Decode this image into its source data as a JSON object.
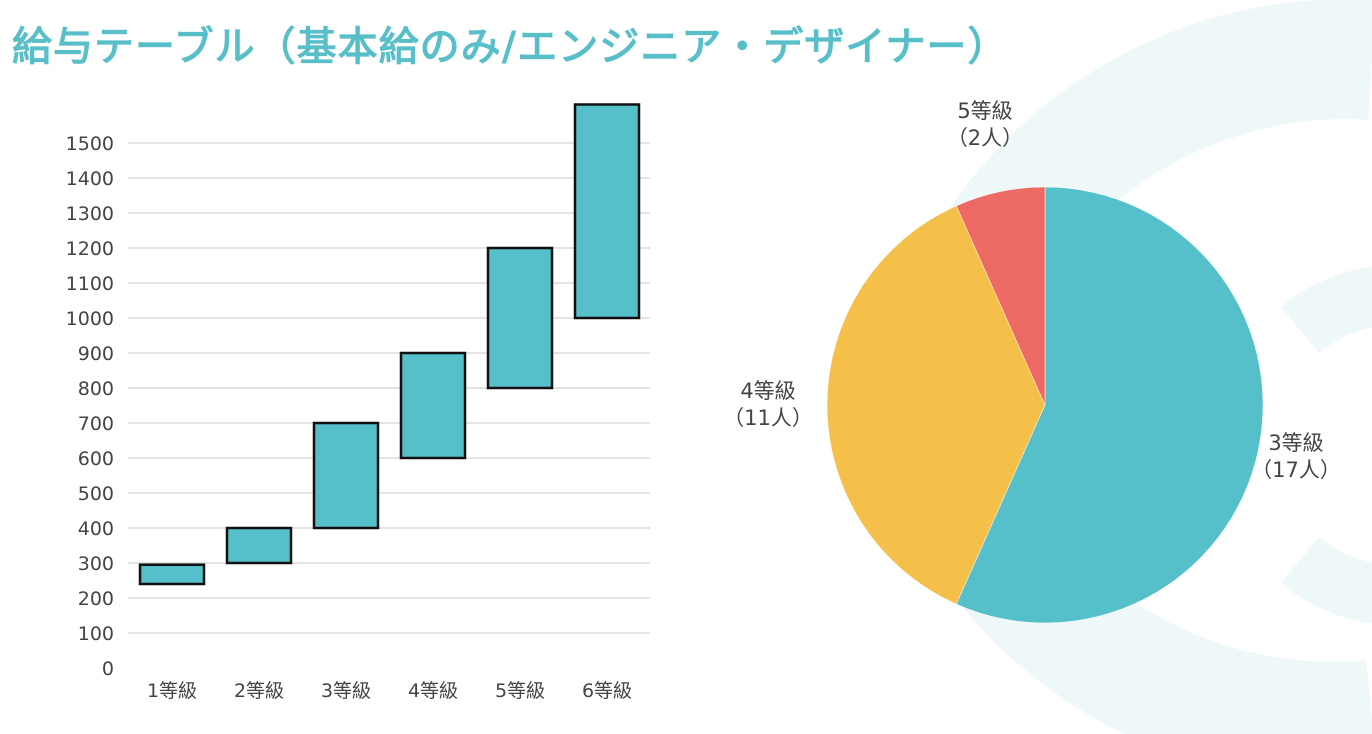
{
  "title": "給与テーブル（基本給のみ/エンジニア・デザイナー）",
  "chart_data": [
    {
      "type": "bar",
      "subtype": "floating-range",
      "categories": [
        "1等級",
        "2等級",
        "3等級",
        "4等級",
        "5等級",
        "6等級"
      ],
      "ranges": [
        [
          240,
          295
        ],
        [
          300,
          400
        ],
        [
          400,
          700
        ],
        [
          600,
          900
        ],
        [
          800,
          1200
        ],
        [
          1000,
          1610
        ]
      ],
      "yticks": [
        0,
        100,
        200,
        300,
        400,
        500,
        600,
        700,
        800,
        900,
        1000,
        1100,
        1200,
        1300,
        1400,
        1500
      ],
      "ylim": [
        0,
        1610
      ],
      "grid": true,
      "bar_color": "#55bfca"
    },
    {
      "type": "pie",
      "slices": [
        {
          "label": "3等級",
          "sub": "（17人）",
          "value": 17,
          "color": "#55bfca"
        },
        {
          "label": "4等級",
          "sub": "（11人）",
          "value": 11,
          "color": "#f4c04a"
        },
        {
          "label": "5等級",
          "sub": "（2人）",
          "value": 2,
          "color": "#ec6a63"
        }
      ]
    }
  ],
  "colors": {
    "accent": "#58bfc9",
    "decor": "#eef8f9"
  }
}
